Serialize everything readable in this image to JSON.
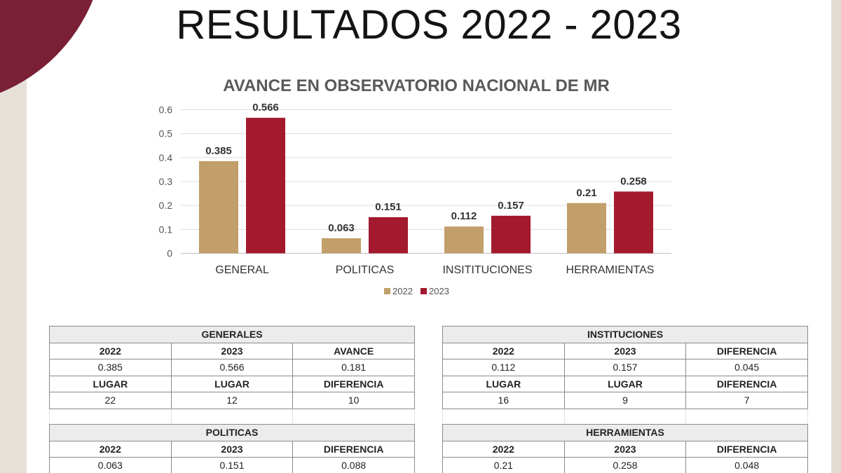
{
  "page_title": "RESULTADOS 2022 - 2023",
  "colors": {
    "s2022": "#c19e6a",
    "s2023": "#a3192e",
    "brand": "#7a1f36"
  },
  "chart_data": {
    "type": "bar",
    "title": "AVANCE EN OBSERVATORIO NACIONAL DE MR",
    "categories": [
      "GENERAL",
      "POLITICAS",
      "INSITITUCIONES",
      "HERRAMIENTAS"
    ],
    "series": [
      {
        "name": "2022",
        "values": [
          0.385,
          0.063,
          0.112,
          0.21
        ],
        "labels": [
          "0.385",
          "0.063",
          "0.112",
          "0.21"
        ]
      },
      {
        "name": "2023",
        "values": [
          0.566,
          0.151,
          0.157,
          0.258
        ],
        "labels": [
          "0.566",
          "0.151",
          "0.157",
          "0.258"
        ]
      }
    ],
    "yticks": [
      "0",
      "0.1",
      "0.2",
      "0.3",
      "0.4",
      "0.5",
      "0.6"
    ],
    "ylim": [
      0,
      0.6
    ],
    "grid": true,
    "legend": "bottom-center"
  },
  "tables": {
    "generales": {
      "title": "GENERALES",
      "h": [
        "2022",
        "2023",
        "AVANCE"
      ],
      "v": [
        "0.385",
        "0.566",
        "0.181"
      ],
      "h2": [
        "LUGAR",
        "LUGAR",
        "DIFERENCIA"
      ],
      "v2": [
        "22",
        "12",
        "10"
      ]
    },
    "instituciones": {
      "title": "INSTITUCIONES",
      "h": [
        "2022",
        "2023",
        "DIFERENCIA"
      ],
      "v": [
        "0.112",
        "0.157",
        "0.045"
      ],
      "h2": [
        "LUGAR",
        "LUGAR",
        "DIFERENCIA"
      ],
      "v2": [
        "16",
        "9",
        "7"
      ]
    },
    "politicas": {
      "title": "POLITICAS",
      "h": [
        "2022",
        "2023",
        "DIFERENCIA"
      ],
      "v": [
        "0.063",
        "0.151",
        "0.088"
      ]
    },
    "herramientas": {
      "title": "HERRAMIENTAS",
      "h": [
        "2022",
        "2023",
        "DIFERENCIA"
      ],
      "v": [
        "0.21",
        "0.258",
        "0.048"
      ]
    }
  }
}
